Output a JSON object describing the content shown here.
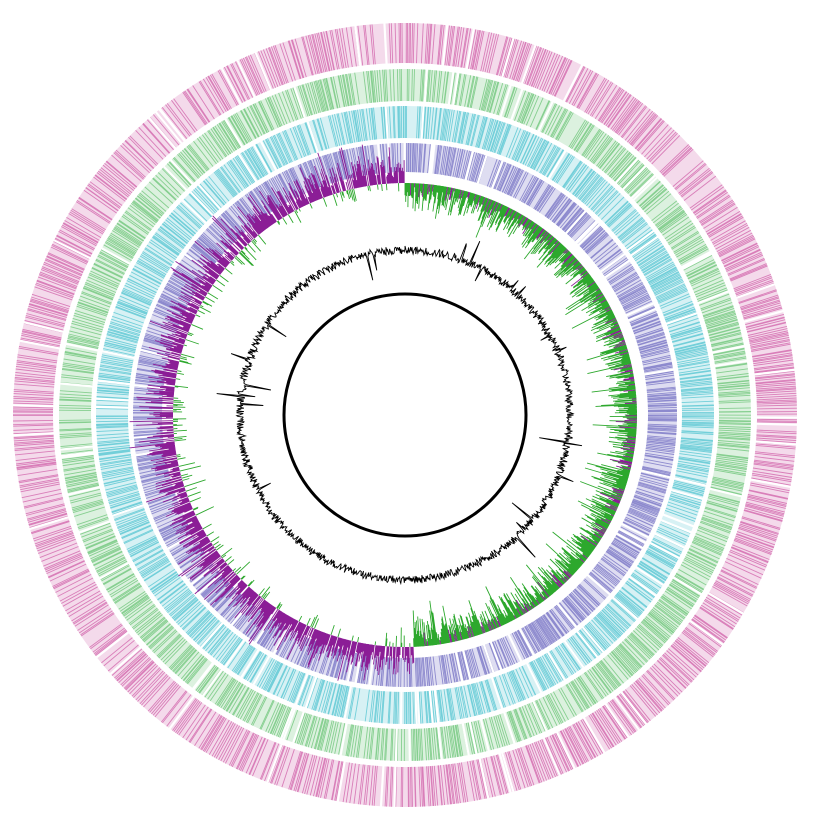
{
  "diagram": {
    "type": "circular-genome-map",
    "background": "#ffffff",
    "rings": [
      {
        "name": "track-1",
        "kind": "presence-ring",
        "color": "#c2338f"
      },
      {
        "name": "track-2",
        "kind": "presence-ring",
        "color": "#3fb34f"
      },
      {
        "name": "track-3",
        "kind": "presence-ring",
        "color": "#1fb3c2"
      },
      {
        "name": "track-4",
        "kind": "presence-ring",
        "color": "#4a45b0"
      }
    ],
    "gc_skew": {
      "positive_color": "#2da82d",
      "negative_color": "#8b1d96"
    },
    "gc_content": {
      "color": "#000000"
    },
    "backbone": {
      "color": "#000000"
    }
  }
}
